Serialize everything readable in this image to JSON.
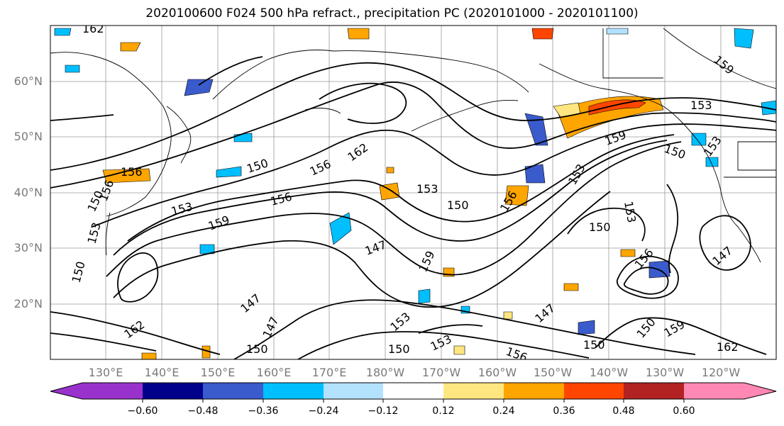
{
  "title": "2020100600 F024 500 hPa refract., precipitation PC (2020101000 - 2020101100)",
  "map": {
    "lat_labels": [
      "60°N",
      "50°N",
      "40°N",
      "30°N",
      "20°N"
    ],
    "lon_labels": [
      "130°E",
      "140°E",
      "150°E",
      "160°E",
      "170°E",
      "180°W",
      "170°W",
      "160°W",
      "150°W",
      "140°W",
      "130°W",
      "120°W"
    ],
    "contour_labels": [
      "162",
      "156",
      "150",
      "153",
      "156",
      "150",
      "156",
      "153",
      "150",
      "159",
      "147",
      "153",
      "150",
      "156",
      "153",
      "150",
      "159",
      "153",
      "162",
      "159",
      "150",
      "153",
      "156",
      "156",
      "159",
      "153",
      "147",
      "150",
      "150",
      "147",
      "162",
      "150",
      "147",
      "150",
      "153",
      "147",
      "153",
      "159",
      "162",
      "156"
    ]
  },
  "colorbar": {
    "colors": [
      "#9932cc",
      "#00008b",
      "#3a5bcc",
      "#00bfff",
      "#b3e2ff",
      "#ffffff",
      "#ffe680",
      "#ffa500",
      "#ff4500",
      "#b22222",
      "#ff88b4"
    ],
    "tick_labels": [
      "−0.60",
      "−0.48",
      "−0.36",
      "−0.24",
      "−0.12",
      "0.12",
      "0.24",
      "0.36",
      "0.48",
      "0.60"
    ]
  }
}
